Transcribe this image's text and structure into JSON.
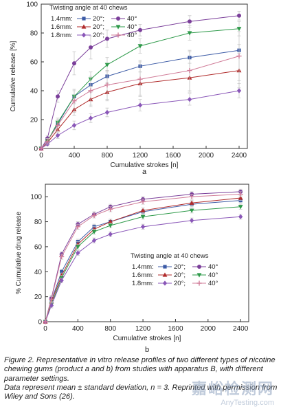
{
  "chart_data": [
    {
      "type": "line",
      "panel_label": "a",
      "xlabel": "Cumulative strokes [n]",
      "ylabel": "Cumulative release [%]",
      "xlim": [
        0,
        2500
      ],
      "ylim": [
        0,
        100
      ],
      "xticks": [
        0,
        400,
        800,
        1200,
        1600,
        2000,
        2400
      ],
      "yticks": [
        0,
        20,
        40,
        60,
        80,
        100
      ],
      "grid": false,
      "legend_title": "Twisting angle at 40 chews",
      "legend_position": "top-left",
      "legend_rows": [
        {
          "label": "1.4mm:",
          "entries": [
            "20°;",
            "40°"
          ]
        },
        {
          "label": "1.6mm:",
          "entries": [
            "20°;",
            "40°"
          ]
        },
        {
          "label": "1.8mm:",
          "entries": [
            "20°;",
            "40°"
          ]
        }
      ],
      "x": [
        0,
        75,
        200,
        400,
        600,
        800,
        1200,
        1800,
        2400
      ],
      "series": [
        {
          "color": "#3c5ba6",
          "marker": "square",
          "values": [
            0,
            5,
            17,
            36,
            44,
            50,
            57,
            63,
            68
          ],
          "err": [
            0,
            1,
            3,
            4,
            4,
            4,
            4,
            4,
            4
          ]
        },
        {
          "color": "#7b3f9a",
          "marker": "circle",
          "values": [
            0,
            7,
            36,
            59,
            70,
            76,
            82,
            88,
            92
          ],
          "err": [
            0,
            2,
            4,
            8,
            8,
            6,
            4,
            4,
            3
          ]
        },
        {
          "color": "#b02a2a",
          "marker": "triangle-up",
          "values": [
            0,
            4,
            13,
            27,
            34,
            39,
            45,
            49,
            54
          ],
          "err": [
            0,
            1,
            3,
            4,
            5,
            6,
            8,
            10,
            12
          ]
        },
        {
          "color": "#2e9a4a",
          "marker": "triangle-down",
          "values": [
            0,
            5,
            18,
            36,
            48,
            58,
            71,
            80,
            83
          ],
          "err": [
            0,
            1,
            3,
            5,
            5,
            5,
            5,
            5,
            5
          ]
        },
        {
          "color": "#8a57b8",
          "marker": "diamond",
          "values": [
            0,
            3,
            9,
            16,
            21,
            25,
            30,
            34,
            40
          ],
          "err": [
            0,
            1,
            2,
            3,
            3,
            3,
            4,
            4,
            5
          ]
        },
        {
          "color": "#d07c98",
          "marker": "plus",
          "values": [
            0,
            5,
            16,
            33,
            40,
            44,
            48,
            54,
            64
          ],
          "err": [
            0,
            2,
            4,
            8,
            10,
            10,
            12,
            14,
            17
          ]
        }
      ]
    },
    {
      "type": "line",
      "panel_label": "b",
      "xlabel": "Cumulative strokes [n]",
      "ylabel": "% Cumulative drug release",
      "xlim": [
        0,
        2500
      ],
      "ylim": [
        0,
        110
      ],
      "xticks": [
        0,
        400,
        800,
        1200,
        1600,
        2000,
        2400
      ],
      "yticks": [
        0,
        20,
        40,
        60,
        80,
        100
      ],
      "grid": false,
      "legend_title": "Twisting angle at 40 chews",
      "legend_position": "bottom-right",
      "legend_rows": [
        {
          "label": "1.4mm:",
          "entries": [
            "20°;",
            "40°"
          ]
        },
        {
          "label": "1.6mm:",
          "entries": [
            "20°;",
            "40°"
          ]
        },
        {
          "label": "1.8mm:",
          "entries": [
            "20°;",
            "40°"
          ]
        }
      ],
      "x": [
        0,
        75,
        200,
        400,
        600,
        800,
        1200,
        1800,
        2400
      ],
      "series": [
        {
          "color": "#3c5ba6",
          "marker": "square",
          "values": [
            0,
            17,
            40,
            64,
            76,
            80,
            88,
            94,
            97
          ],
          "err": [
            0,
            2,
            2,
            2,
            2,
            2,
            2,
            2,
            2
          ]
        },
        {
          "color": "#7b3f9a",
          "marker": "circle",
          "values": [
            0,
            19,
            54,
            78,
            86,
            92,
            98,
            102,
            104
          ],
          "err": [
            0,
            2,
            2,
            2,
            2,
            2,
            2,
            2,
            2
          ]
        },
        {
          "color": "#b02a2a",
          "marker": "triangle-up",
          "values": [
            0,
            16,
            37,
            62,
            74,
            80,
            89,
            95,
            99
          ],
          "err": [
            0,
            2,
            2,
            2,
            2,
            2,
            2,
            2,
            2
          ]
        },
        {
          "color": "#2e9a4a",
          "marker": "triangle-down",
          "values": [
            0,
            14,
            35,
            60,
            72,
            77,
            84,
            89,
            92
          ],
          "err": [
            0,
            2,
            2,
            2,
            2,
            2,
            2,
            2,
            2
          ]
        },
        {
          "color": "#8a57b8",
          "marker": "diamond",
          "values": [
            0,
            13,
            33,
            55,
            65,
            70,
            76,
            81,
            84
          ],
          "err": [
            0,
            2,
            2,
            2,
            2,
            2,
            2,
            2,
            2
          ]
        },
        {
          "color": "#d07c98",
          "marker": "plus",
          "values": [
            0,
            18,
            52,
            76,
            85,
            90,
            96,
            100,
            102
          ],
          "err": [
            0,
            2,
            2,
            2,
            2,
            2,
            2,
            2,
            2
          ]
        }
      ]
    }
  ],
  "caption": {
    "line1": "Figure 2. Representative in vitro release profiles of two different types of nicotine chewing gums (product a and b) from studies with apparatus B, with different parameter settings.",
    "line2": "Data represent mean ± standard deviation, n = 3. Reprinted with permission from Wiley and Sons (26)."
  },
  "watermark": {
    "cn": "嘉峪检测网",
    "en": "AnyTesting.com"
  }
}
